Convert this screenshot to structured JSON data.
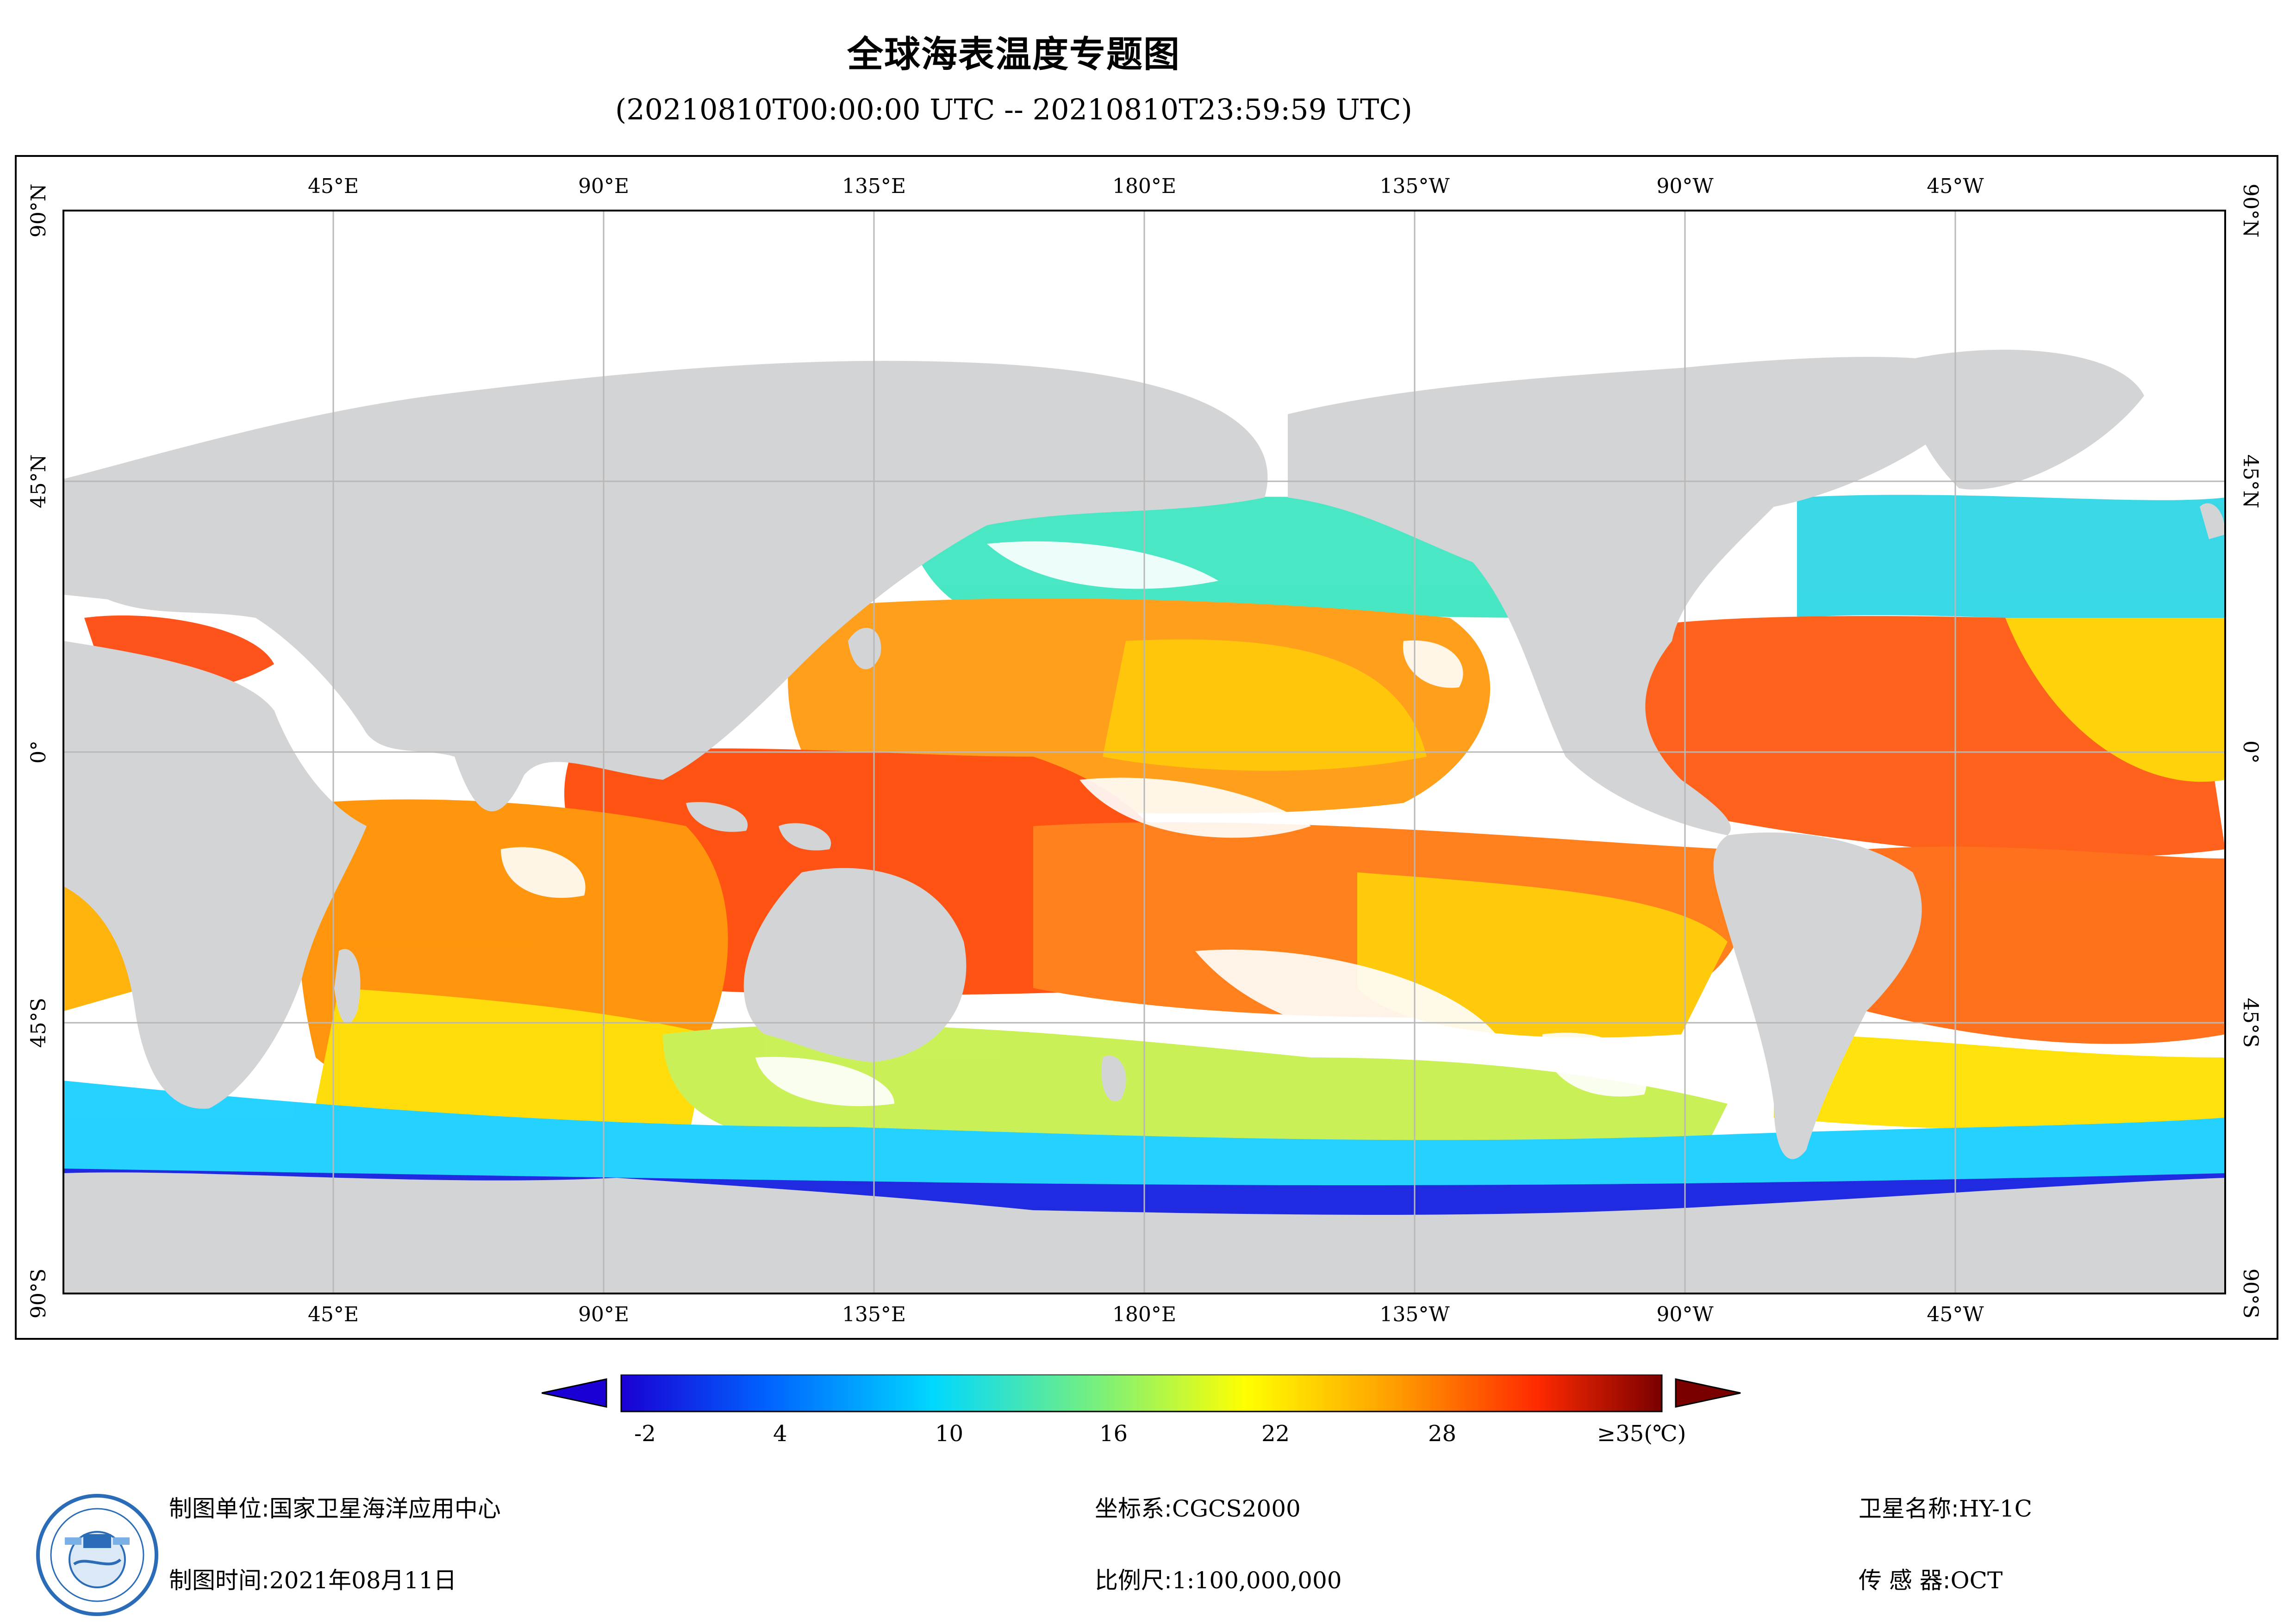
{
  "title": "全球海表温度专题图",
  "subtitle": "(20210810T00:00:00 UTC -- 20210810T23:59:59 UTC)",
  "map": {
    "projection": "plate carree",
    "colors": {
      "land": "#d3d4d6",
      "no_data": "#ffffff",
      "grid": "#b8b8b8"
    },
    "lon_labels": [
      "45°E",
      "90°E",
      "135°E",
      "180°E",
      "135°W",
      "90°W",
      "45°W"
    ],
    "lat_labels": [
      "90°N",
      "45°N",
      "0°",
      "45°S",
      "90°S"
    ],
    "data_coverage_lat": [
      -60,
      60
    ]
  },
  "colorbar": {
    "range": [
      -5,
      35
    ],
    "unit": "℃",
    "tick_labels": [
      "-2",
      "4",
      "10",
      "16",
      "22",
      "28",
      "≥35(℃)"
    ],
    "tick_values": [
      -2,
      4,
      10,
      16,
      22,
      28,
      35
    ],
    "extend": "both",
    "palette": [
      "#1a00d4",
      "#0062ff",
      "#00d8ff",
      "#7af07a",
      "#ffff00",
      "#ffa000",
      "#ff2a00",
      "#7a0000"
    ]
  },
  "info": {
    "producer_label": "制图单位:",
    "producer_value": "国家卫星海洋应用中心",
    "date_label": "制图时间:",
    "date_value": "2021年08月11日",
    "coord_label": "坐标系:",
    "coord_value": "CGCS2000",
    "scale_label": "比例尺:",
    "scale_value": "1:100,000,000",
    "satellite_label": "卫星名称:",
    "satellite_value": "HY-1C",
    "sensor_label": "传 感 器:",
    "sensor_value": "OCT"
  }
}
